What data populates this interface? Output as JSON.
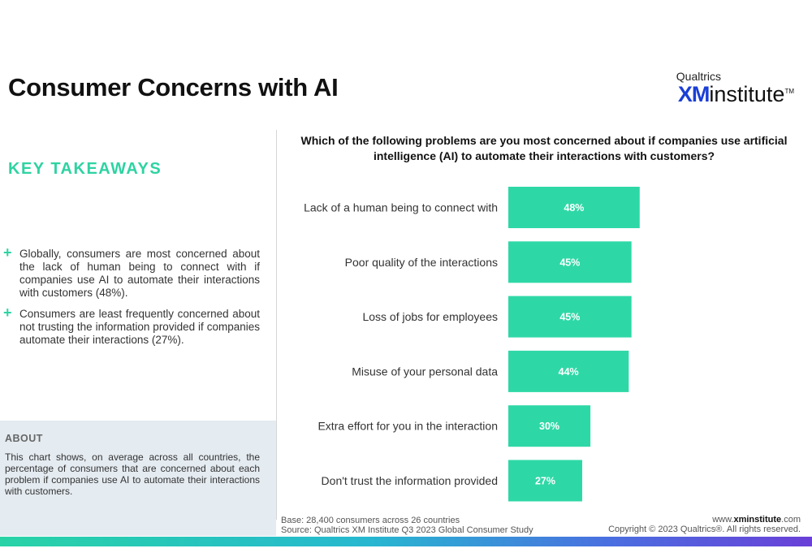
{
  "header": {
    "title": "Consumer Concerns with AI",
    "logo_top": "Qualtrics",
    "logo_xm": "XM",
    "logo_institute": "institute",
    "logo_tm": "TM"
  },
  "takeaways": {
    "title": "KEY TAKEAWAYS",
    "items": [
      "Globally, consumers are most concerned about the lack of human being to connect with if companies use AI to automate their interactions with customers (48%).",
      "Consumers are least frequently concerned about not trusting the information provided if companies automate their interactions (27%)."
    ]
  },
  "about": {
    "title": "ABOUT",
    "text": "This chart shows, on average across all countries, the percentage of consumers that are concerned about each problem if companies use AI to automate their interactions with customers."
  },
  "chart_data": {
    "type": "bar",
    "orientation": "horizontal",
    "title": "Which of the following problems are you most concerned about if companies use artificial intelligence (AI) to automate their interactions with customers?",
    "categories": [
      "Lack of a human being to connect with",
      "Poor quality of the interactions",
      "Loss of jobs for employees",
      "Misuse of your personal data",
      "Extra effort for you in the interaction",
      "Don't trust the information provided"
    ],
    "values": [
      48,
      45,
      45,
      44,
      30,
      27
    ],
    "labels": [
      "48%",
      "45%",
      "45%",
      "44%",
      "30%",
      "27%"
    ],
    "color": "#2ed8a6",
    "grid": false,
    "legend": "none"
  },
  "footer": {
    "base": "Base: 28,400 consumers across 26 countries",
    "source": "Source: Qualtrics XM Institute Q3 2023 Global Consumer Study",
    "site_prefix": "www.",
    "site_bold": "xminstitute",
    "site_suffix": ".com",
    "copyright": "Copyright © 2023 Qualtrics®. All rights reserved."
  }
}
